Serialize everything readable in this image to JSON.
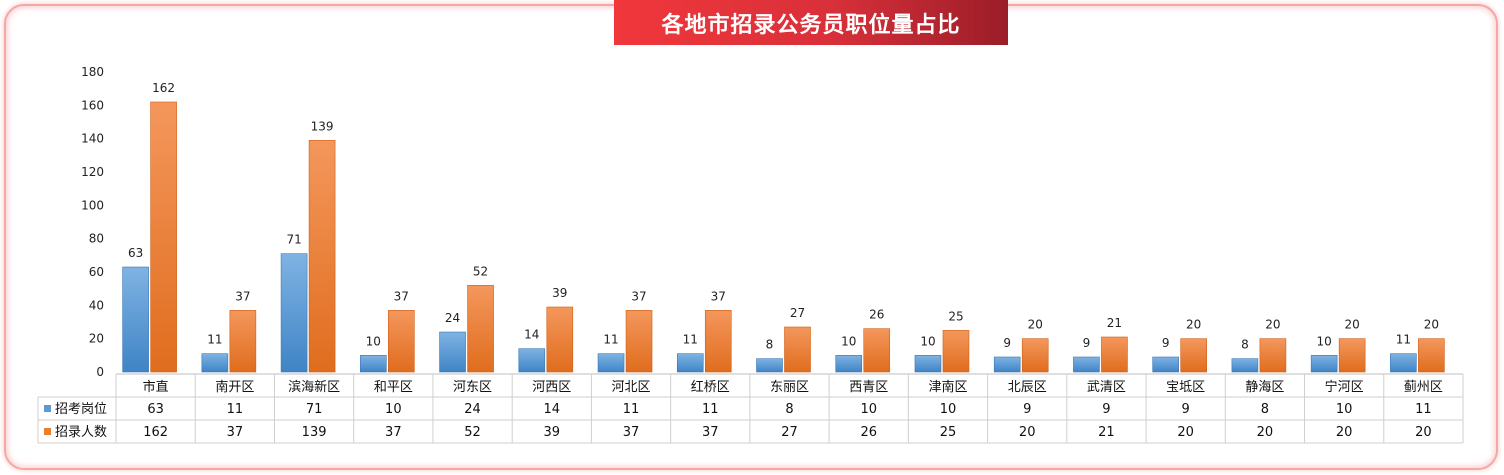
{
  "title": "各地市招录公务员职位量占比",
  "colors": {
    "series1": "#5b9bd5",
    "series2": "#ed7d31",
    "title_bg": "#e0353c"
  },
  "chart_data": {
    "type": "bar",
    "title": "各地市招录公务员职位量占比",
    "categories": [
      "市直",
      "南开区",
      "滨海新区",
      "和平区",
      "河东区",
      "河西区",
      "河北区",
      "红桥区",
      "东丽区",
      "西青区",
      "津南区",
      "北辰区",
      "武清区",
      "宝坻区",
      "静海区",
      "宁河区",
      "蓟州区"
    ],
    "series": [
      {
        "name": "招考岗位",
        "values": [
          63,
          11,
          71,
          10,
          24,
          14,
          11,
          11,
          8,
          10,
          10,
          9,
          9,
          9,
          8,
          10,
          11
        ]
      },
      {
        "name": "招录人数",
        "values": [
          162,
          37,
          139,
          37,
          52,
          39,
          37,
          37,
          27,
          26,
          25,
          20,
          21,
          20,
          20,
          20,
          20
        ]
      }
    ],
    "yticks": [
      0,
      20,
      40,
      60,
      80,
      100,
      120,
      140,
      160,
      180
    ],
    "ylim": [
      0,
      180
    ],
    "grid": false,
    "legend": "data-table-left",
    "data_labels": true
  }
}
